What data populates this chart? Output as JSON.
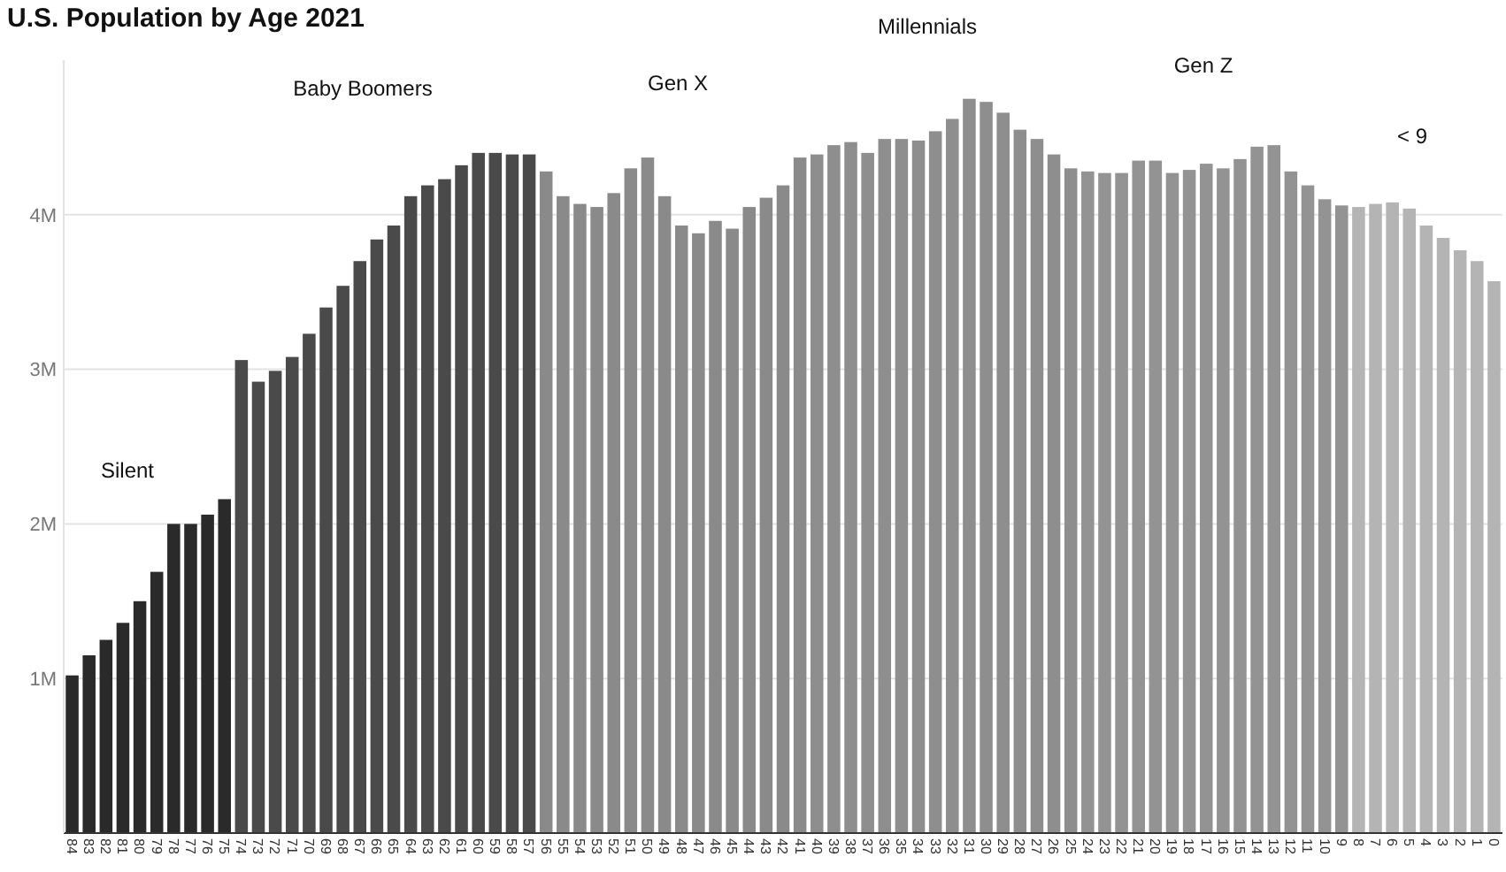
{
  "chart_data": {
    "type": "bar",
    "title": "U.S. Population by Age 2021",
    "categories": [
      "84",
      "83",
      "82",
      "81",
      "80",
      "79",
      "78",
      "77",
      "76",
      "75",
      "74",
      "73",
      "72",
      "71",
      "70",
      "69",
      "68",
      "67",
      "66",
      "65",
      "64",
      "63",
      "62",
      "61",
      "60",
      "59",
      "58",
      "57",
      "56",
      "55",
      "54",
      "53",
      "52",
      "51",
      "50",
      "49",
      "48",
      "47",
      "46",
      "45",
      "44",
      "43",
      "42",
      "41",
      "40",
      "39",
      "38",
      "37",
      "36",
      "35",
      "34",
      "33",
      "32",
      "31",
      "30",
      "29",
      "28",
      "27",
      "26",
      "25",
      "24",
      "23",
      "22",
      "21",
      "20",
      "19",
      "18",
      "17",
      "16",
      "15",
      "14",
      "13",
      "12",
      "11",
      "10",
      "9",
      "8",
      "7",
      "6",
      "5",
      "4",
      "3",
      "2",
      "1",
      "0"
    ],
    "values": [
      1.02,
      1.15,
      1.25,
      1.36,
      1.5,
      1.69,
      2.0,
      2.0,
      2.06,
      2.16,
      3.06,
      2.92,
      2.99,
      3.08,
      3.23,
      3.4,
      3.54,
      3.7,
      3.84,
      3.93,
      4.12,
      4.19,
      4.23,
      4.32,
      4.4,
      4.4,
      4.39,
      4.39,
      4.28,
      4.12,
      4.07,
      4.05,
      4.14,
      4.3,
      4.37,
      4.12,
      3.93,
      3.88,
      3.96,
      3.91,
      4.05,
      4.11,
      4.19,
      4.37,
      4.39,
      4.45,
      4.47,
      4.4,
      4.49,
      4.49,
      4.48,
      4.54,
      4.62,
      4.75,
      4.73,
      4.66,
      4.55,
      4.49,
      4.39,
      4.3,
      4.28,
      4.27,
      4.27,
      4.35,
      4.35,
      4.27,
      4.29,
      4.33,
      4.3,
      4.36,
      4.44,
      4.45,
      4.28,
      4.19,
      4.1,
      4.06,
      4.05,
      4.07,
      4.08,
      4.04,
      3.93,
      3.85,
      3.77,
      3.7,
      3.57
    ],
    "colors": [
      "#2a2a2a",
      "#2a2a2a",
      "#2a2a2a",
      "#2a2a2a",
      "#2a2a2a",
      "#2a2a2a",
      "#2a2a2a",
      "#2a2a2a",
      "#2a2a2a",
      "#2a2a2a",
      "#4a4a4a",
      "#4a4a4a",
      "#4a4a4a",
      "#4a4a4a",
      "#4a4a4a",
      "#4a4a4a",
      "#4a4a4a",
      "#4a4a4a",
      "#4a4a4a",
      "#4a4a4a",
      "#4a4a4a",
      "#4a4a4a",
      "#4a4a4a",
      "#4a4a4a",
      "#4a4a4a",
      "#4a4a4a",
      "#4a4a4a",
      "#4a4a4a",
      "#8a8a8a",
      "#8a8a8a",
      "#8a8a8a",
      "#8a8a8a",
      "#8a8a8a",
      "#8a8a8a",
      "#8a8a8a",
      "#8a8a8a",
      "#8a8a8a",
      "#8a8a8a",
      "#8a8a8a",
      "#8a8a8a",
      "#8a8a8a",
      "#8a8a8a",
      "#8a8a8a",
      "#8a8a8a",
      "#8e8e8e",
      "#8e8e8e",
      "#8e8e8e",
      "#8e8e8e",
      "#8e8e8e",
      "#8e8e8e",
      "#8e8e8e",
      "#8e8e8e",
      "#8e8e8e",
      "#8e8e8e",
      "#8e8e8e",
      "#8e8e8e",
      "#8e8e8e",
      "#8e8e8e",
      "#8e8e8e",
      "#8e8e8e",
      "#939393",
      "#939393",
      "#939393",
      "#939393",
      "#939393",
      "#939393",
      "#939393",
      "#939393",
      "#939393",
      "#939393",
      "#939393",
      "#939393",
      "#939393",
      "#939393",
      "#939393",
      "#939393",
      "#b4b4b4",
      "#b4b4b4",
      "#b4b4b4",
      "#b4b4b4",
      "#b4b4b4",
      "#b4b4b4",
      "#b4b4b4",
      "#b4b4b4",
      "#b4b4b4"
    ],
    "ylim": [
      0,
      5
    ],
    "yticks": [
      {
        "value": 1,
        "label": "1M"
      },
      {
        "value": 2,
        "label": "2M"
      },
      {
        "value": 3,
        "label": "3M"
      },
      {
        "value": 4,
        "label": "4M"
      }
    ],
    "grid": "y",
    "annotations": [
      "Silent",
      "Baby Boomers",
      "Gen X",
      "Millennials",
      "Gen Z",
      "< 9"
    ]
  }
}
